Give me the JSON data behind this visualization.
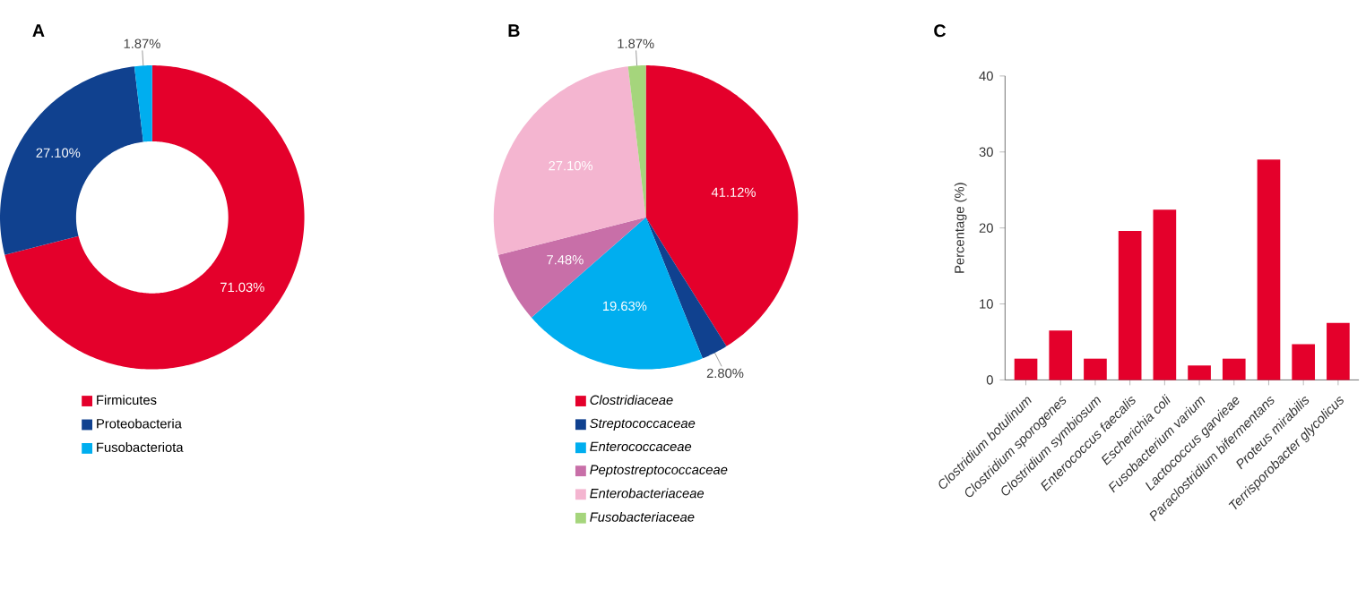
{
  "chart_data": [
    {
      "type": "donut",
      "title": "A",
      "categories": [
        "Firmicutes",
        "Proteobacteria",
        "Fusobacteriota"
      ],
      "values": [
        71.03,
        27.1,
        1.87
      ],
      "value_labels": [
        "71.03%",
        "27.10%",
        "1.87%"
      ],
      "colors": [
        "#e4002b",
        "#10418f",
        "#00aeef"
      ],
      "legend": "bottom"
    },
    {
      "type": "pie",
      "title": "B",
      "categories": [
        "Clostridiaceae",
        "Streptococcaceae",
        "Enterococcaceae",
        "Peptostreptococcaceae",
        "Enterobacteriaceae",
        "Fusobacteriaceae"
      ],
      "values": [
        41.12,
        2.8,
        19.63,
        7.48,
        27.1,
        1.87
      ],
      "value_labels": [
        "41.12%",
        "2.80%",
        "19.63%",
        "7.48%",
        "27.10%",
        "1.87%"
      ],
      "colors": [
        "#e4002b",
        "#10418f",
        "#00aeef",
        "#c86fa8",
        "#f4b5d0",
        "#a5d57c"
      ],
      "legend": "bottom"
    },
    {
      "type": "bar",
      "title": "C",
      "ylabel": "Percentage (%)",
      "categories": [
        "Clostridium botulinum",
        "Clostridium sporogenes",
        "Clostridium symbiosum",
        "Enterococcus faecalis",
        "Escherichia coli",
        "Fusobacterium varium",
        "Lactococcus garvieae",
        "Paraclostridium bifermentans",
        "Proteus mirabilis",
        "Terrisporobacter glycolicus"
      ],
      "values": [
        2.8,
        6.5,
        2.8,
        19.6,
        22.4,
        1.9,
        2.8,
        29.0,
        4.7,
        7.5
      ],
      "color": "#e4002b",
      "ylim": [
        0,
        40
      ],
      "yticks": [
        0,
        10,
        20,
        30,
        40
      ],
      "grid": false
    }
  ]
}
